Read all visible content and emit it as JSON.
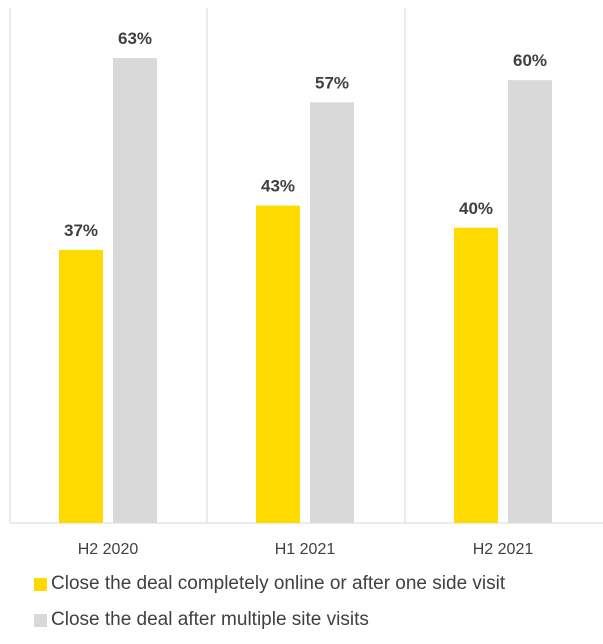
{
  "chart_data": {
    "type": "bar",
    "categories": [
      "H2 2020",
      "H1 2021",
      "H2 2021"
    ],
    "series": [
      {
        "name": "Close the deal completely online or after one side visit",
        "values": [
          37,
          43,
          40
        ],
        "labels": [
          "37%",
          "43%",
          "40%"
        ],
        "color": "#FFDA00"
      },
      {
        "name": "Close the deal after multiple site visits",
        "values": [
          63,
          57,
          60
        ],
        "labels": [
          "63%",
          "57%",
          "60%"
        ],
        "color": "#D9D9D9"
      }
    ],
    "ylim": [
      0,
      65
    ],
    "grid": false,
    "legend": "bottom",
    "colors": {
      "divider": "#D9D9D9",
      "text": "#404040"
    }
  }
}
